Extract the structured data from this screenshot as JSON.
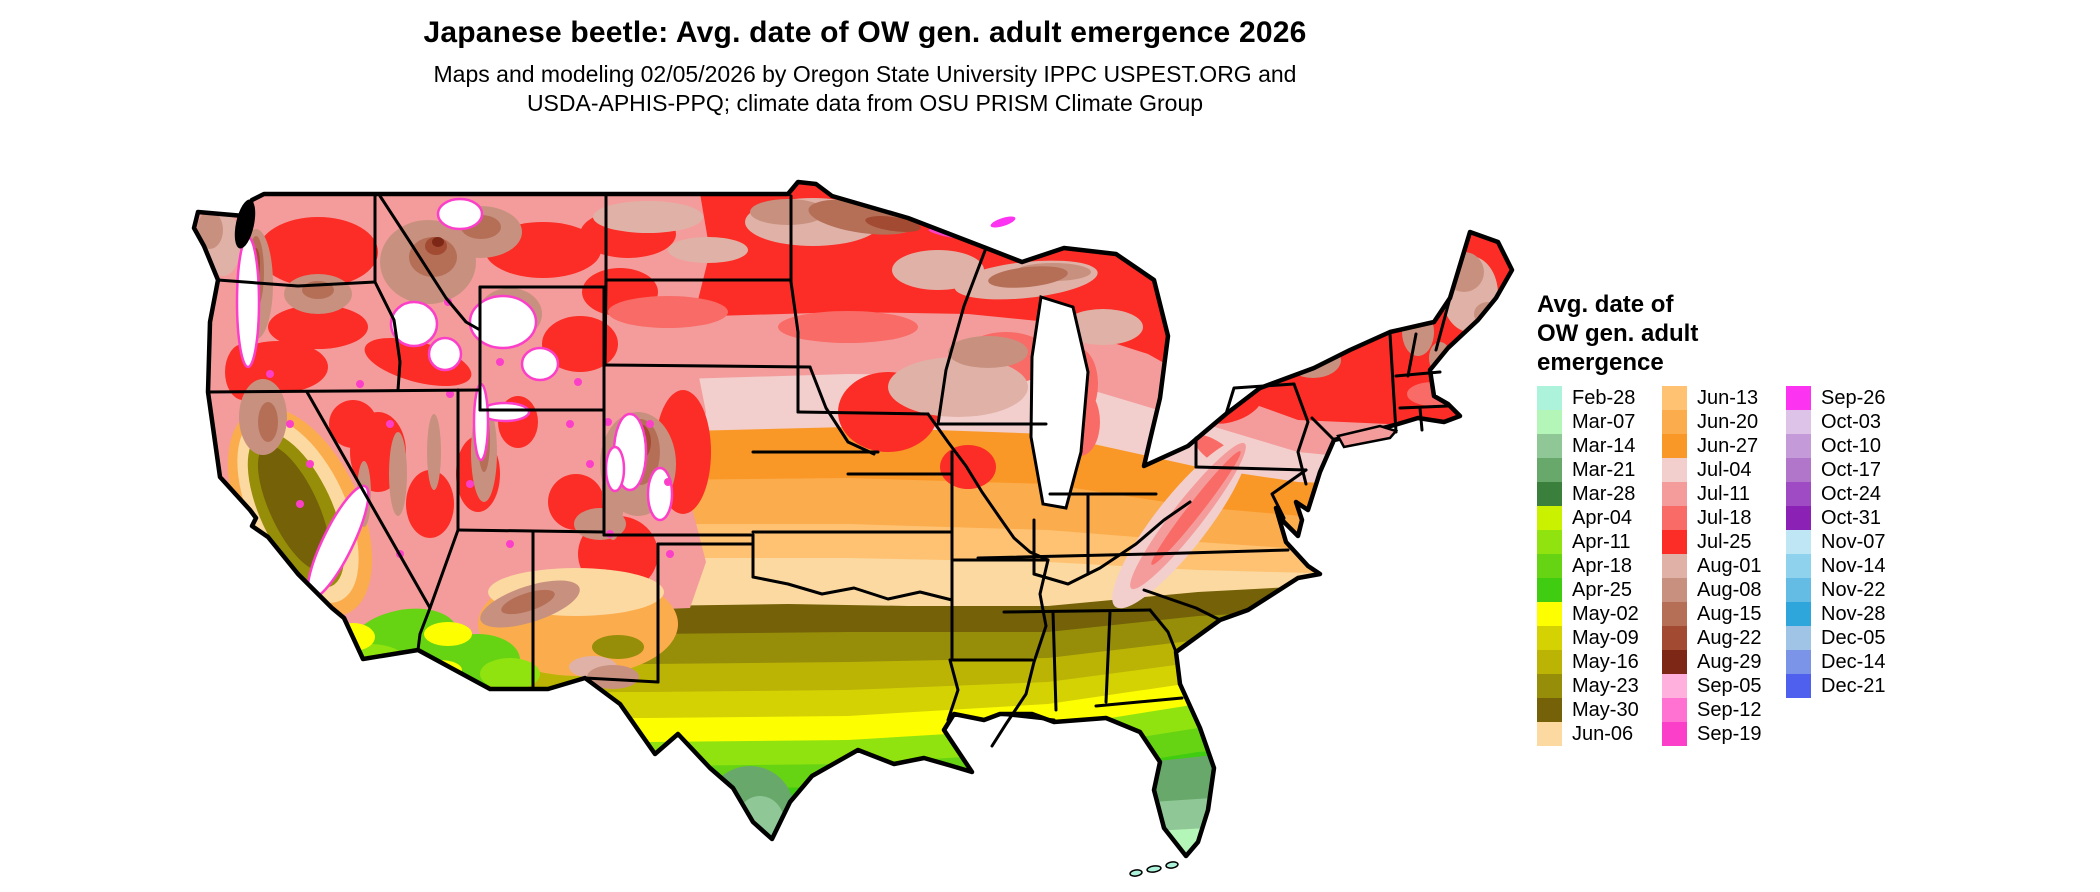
{
  "header": {
    "title": "Japanese beetle: Avg. date of OW gen. adult emergence 2026",
    "subtitle_line1": "Maps and modeling 02/05/2026 by Oregon State University IPPC USPEST.ORG and",
    "subtitle_line2": "USDA-APHIS-PPQ; climate data from OSU PRISM Climate Group"
  },
  "legend": {
    "title_line1": "Avg. date of",
    "title_line2": "OW gen. adult",
    "title_line3": "emergence",
    "columns": [
      {
        "items": [
          {
            "label": "Feb-28",
            "color": "#ADF2DB"
          },
          {
            "label": "Mar-07",
            "color": "#B4F6B7"
          },
          {
            "label": "Mar-14",
            "color": "#90C797"
          },
          {
            "label": "Mar-21",
            "color": "#68A96B"
          },
          {
            "label": "Mar-28",
            "color": "#3B7F3C"
          },
          {
            "label": "Apr-04",
            "color": "#C9F100"
          },
          {
            "label": "Apr-11",
            "color": "#90E30F"
          },
          {
            "label": "Apr-18",
            "color": "#66D413"
          },
          {
            "label": "Apr-25",
            "color": "#40CC10"
          },
          {
            "label": "May-02",
            "color": "#FDFF00"
          },
          {
            "label": "May-09",
            "color": "#D5D204"
          },
          {
            "label": "May-16",
            "color": "#BBB404"
          },
          {
            "label": "May-23",
            "color": "#968D08"
          },
          {
            "label": "May-30",
            "color": "#746108"
          },
          {
            "label": "Jun-06",
            "color": "#FBD9A0"
          }
        ]
      },
      {
        "items": [
          {
            "label": "Jun-13",
            "color": "#FFC273"
          },
          {
            "label": "Jun-20",
            "color": "#FBAC4D"
          },
          {
            "label": "Jun-27",
            "color": "#FA9827"
          },
          {
            "label": "Jul-04",
            "color": "#F2CFCD"
          },
          {
            "label": "Jul-11",
            "color": "#F49C9B"
          },
          {
            "label": "Jul-18",
            "color": "#F96B66"
          },
          {
            "label": "Jul-25",
            "color": "#FB2D26"
          },
          {
            "label": "Aug-01",
            "color": "#E0B2A7"
          },
          {
            "label": "Aug-08",
            "color": "#C8917F"
          },
          {
            "label": "Aug-15",
            "color": "#B56F57"
          },
          {
            "label": "Aug-22",
            "color": "#A34A32"
          },
          {
            "label": "Aug-29",
            "color": "#7D2817"
          },
          {
            "label": "Sep-05",
            "color": "#FFB0DC"
          },
          {
            "label": "Sep-12",
            "color": "#FF72D2"
          },
          {
            "label": "Sep-19",
            "color": "#FC3FC9"
          }
        ]
      },
      {
        "items": [
          {
            "label": "Sep-26",
            "color": "#FC33F0"
          },
          {
            "label": "Oct-03",
            "color": "#DCC3E7"
          },
          {
            "label": "Oct-10",
            "color": "#C49AD8"
          },
          {
            "label": "Oct-17",
            "color": "#B175C9"
          },
          {
            "label": "Oct-24",
            "color": "#9F4BC3"
          },
          {
            "label": "Oct-31",
            "color": "#8C22B5"
          },
          {
            "label": "Nov-07",
            "color": "#BFE6F5"
          },
          {
            "label": "Nov-14",
            "color": "#8FD2EE"
          },
          {
            "label": "Nov-22",
            "color": "#64BCE5"
          },
          {
            "label": "Nov-28",
            "color": "#2EA6DC"
          },
          {
            "label": "Dec-05",
            "color": "#A0C4E6"
          },
          {
            "label": "Dec-14",
            "color": "#7B94E8"
          },
          {
            "label": "Dec-21",
            "color": "#4F5FEE"
          }
        ]
      }
    ]
  },
  "map": {
    "description": "Contiguous United States choropleth of average overwintered-generation adult emergence date; early (green/mint) in the Gulf South and Florida, late (red/brown/white with magenta fringe) in the northern tier and western mountains",
    "palette": {
      "feb28": "#ADF2DB",
      "mar07": "#B4F6B7",
      "mar14": "#90C797",
      "mar21": "#68A96B",
      "apr11": "#90E30F",
      "apr18": "#66D413",
      "apr25": "#40CC10",
      "may02": "#FDFF00",
      "may09": "#D5D204",
      "may16": "#BBB404",
      "may23": "#968D08",
      "may30": "#746108",
      "jun06": "#FBD9A0",
      "jun13": "#FFC273",
      "jun20": "#FBAC4D",
      "jun27": "#FA9827",
      "jul04": "#F2CFCD",
      "jul11": "#F49C9B",
      "jul18": "#F96B66",
      "jul25": "#FB2D26",
      "aug01": "#E0B2A7",
      "aug08": "#C8917F",
      "aug15": "#B56F57",
      "aug22": "#A34A32",
      "aug29": "#7D2817",
      "sep19": "#FC3FC9",
      "sep26": "#FC33F0",
      "white": "#FFFFFF"
    }
  }
}
